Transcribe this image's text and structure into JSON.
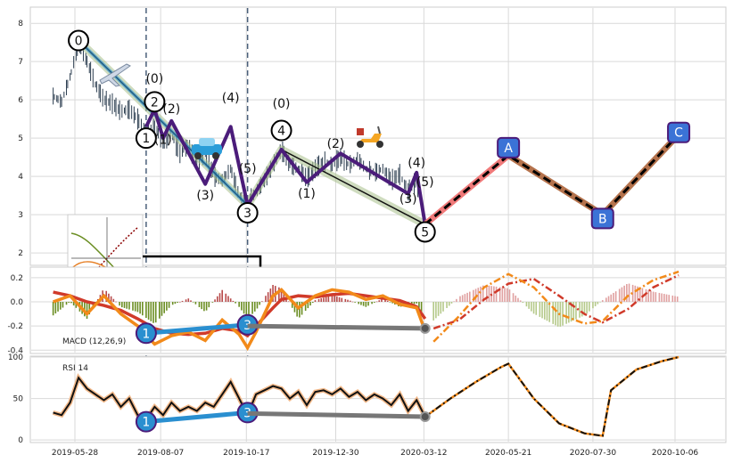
{
  "chart_data": [
    {
      "type": "line",
      "panel": "price",
      "ylim": [
        1.7,
        8.4
      ],
      "yticks": [
        "2",
        "3",
        "4",
        "5",
        "6",
        "7",
        "8"
      ],
      "xticks": [
        "2019-05-28",
        "2019-08-07",
        "2019-10-17",
        "2019-12-30",
        "2020-03-12",
        "2020-05-21",
        "2020-07-30",
        "2020-10-06"
      ],
      "grid": true,
      "price_series": [
        [
          "2019-05-10",
          6.1
        ],
        [
          "2019-05-17",
          5.95
        ],
        [
          "2019-05-24",
          6.6
        ],
        [
          "2019-05-31",
          7.5
        ],
        [
          "2019-06-07",
          7.0
        ],
        [
          "2019-06-14",
          6.4
        ],
        [
          "2019-06-21",
          6.0
        ],
        [
          "2019-06-28",
          5.9
        ],
        [
          "2019-07-05",
          5.7
        ],
        [
          "2019-07-12",
          5.75
        ],
        [
          "2019-07-19",
          5.5
        ],
        [
          "2019-07-26",
          5.1
        ],
        [
          "2019-08-02",
          5.3
        ],
        [
          "2019-08-09",
          4.9
        ],
        [
          "2019-08-16",
          5.1
        ],
        [
          "2019-08-23",
          4.6
        ],
        [
          "2019-08-30",
          4.8
        ],
        [
          "2019-09-06",
          4.3
        ],
        [
          "2019-09-13",
          4.6
        ],
        [
          "2019-09-20",
          4.0
        ],
        [
          "2019-09-27",
          3.9
        ],
        [
          "2019-10-04",
          4.2
        ],
        [
          "2019-10-11",
          3.5
        ],
        [
          "2019-10-18",
          3.3
        ],
        [
          "2019-10-25",
          3.6
        ],
        [
          "2019-11-01",
          3.9
        ],
        [
          "2019-11-08",
          4.3
        ],
        [
          "2019-11-15",
          4.7
        ],
        [
          "2019-11-22",
          4.3
        ],
        [
          "2019-11-29",
          4.2
        ],
        [
          "2019-12-06",
          3.95
        ],
        [
          "2019-12-13",
          4.2
        ],
        [
          "2019-12-20",
          4.4
        ],
        [
          "2019-12-27",
          4.3
        ],
        [
          "2020-01-03",
          4.5
        ],
        [
          "2020-01-10",
          4.3
        ],
        [
          "2020-01-17",
          4.45
        ],
        [
          "2020-01-24",
          4.2
        ],
        [
          "2020-01-31",
          4.1
        ],
        [
          "2020-02-07",
          4.2
        ],
        [
          "2020-02-14",
          3.9
        ],
        [
          "2020-02-21",
          4.05
        ],
        [
          "2020-02-28",
          3.6
        ],
        [
          "2020-03-06",
          3.9
        ],
        [
          "2020-03-13",
          2.75
        ]
      ],
      "trend_line": [
        [
          "2019-05-31",
          7.55
        ],
        [
          "2019-10-18",
          3.25
        ],
        [
          "2019-11-15",
          4.7
        ],
        [
          "2020-03-13",
          2.75
        ]
      ],
      "wave_path": [
        [
          "2019-07-26",
          5.3
        ],
        [
          "2019-08-02",
          5.75
        ],
        [
          "2019-08-09",
          5.0
        ],
        [
          "2019-08-16",
          5.45
        ],
        [
          "2019-09-13",
          3.8
        ],
        [
          "2019-10-04",
          5.3
        ],
        [
          "2019-10-18",
          3.25
        ],
        [
          "2019-11-15",
          4.7
        ],
        [
          "2019-12-06",
          3.85
        ],
        [
          "2020-01-03",
          4.6
        ],
        [
          "2020-02-28",
          3.55
        ],
        [
          "2020-03-06",
          4.1
        ],
        [
          "2020-03-13",
          2.75
        ]
      ],
      "projection": [
        [
          "2020-03-13",
          2.75
        ],
        [
          "2020-05-21",
          4.55
        ],
        [
          "2020-08-07",
          3.0
        ],
        [
          "2020-10-09",
          5.1
        ]
      ],
      "wave_labels": [
        {
          "text": "0",
          "x": "2019-05-31",
          "y": 7.55,
          "circled": true
        },
        {
          "text": "1",
          "x": "2019-07-26",
          "y": 5.0,
          "circled": true
        },
        {
          "text": "2",
          "x": "2019-08-02",
          "y": 5.95,
          "circled": true
        },
        {
          "text": "3",
          "x": "2019-10-18",
          "y": 3.05,
          "circled": true
        },
        {
          "text": "4",
          "x": "2019-11-15",
          "y": 5.2,
          "circled": true
        },
        {
          "text": "5",
          "x": "2020-03-13",
          "y": 2.55,
          "circled": true
        },
        {
          "text": "(0)",
          "x": "2019-08-02",
          "y": 6.45,
          "circled": false
        },
        {
          "text": "(1)",
          "x": "2019-08-09",
          "y": 4.85,
          "circled": false
        },
        {
          "text": "(2)",
          "x": "2019-08-16",
          "y": 5.65,
          "circled": false
        },
        {
          "text": "(3)",
          "x": "2019-09-13",
          "y": 3.4,
          "circled": false
        },
        {
          "text": "(4)",
          "x": "2019-10-04",
          "y": 5.95,
          "circled": false
        },
        {
          "text": "(5)",
          "x": "2019-10-18",
          "y": 4.1,
          "circled": false
        },
        {
          "text": "(0)",
          "x": "2019-11-15",
          "y": 5.8,
          "circled": false
        },
        {
          "text": "(1)",
          "x": "2019-12-06",
          "y": 3.45,
          "circled": false
        },
        {
          "text": "(2)",
          "x": "2019-12-30",
          "y": 4.75,
          "circled": false
        },
        {
          "text": "(3)",
          "x": "2020-02-28",
          "y": 3.3,
          "circled": false
        },
        {
          "text": "(4)",
          "x": "2020-03-06",
          "y": 4.25,
          "circled": false
        },
        {
          "text": "(5)",
          "x": "2020-03-13",
          "y": 3.75,
          "circled": false
        }
      ],
      "abc_labels": [
        {
          "text": "A",
          "x": "2020-05-21",
          "y": 4.75
        },
        {
          "text": "B",
          "x": "2020-08-07",
          "y": 2.9
        },
        {
          "text": "C",
          "x": "2020-10-09",
          "y": 5.15
        }
      ],
      "vlines": [
        "2019-07-26",
        "2019-10-18"
      ],
      "icons": [
        "airplane-icon",
        "car-icon",
        "scooter-icon"
      ]
    },
    {
      "type": "bar",
      "panel": "macd",
      "label": "MACD (12,26,9)",
      "ylim": [
        -0.42,
        0.28
      ],
      "yticks": [
        "0.2",
        "0.0",
        "-0.2",
        "-0.4"
      ],
      "macd_line": [
        [
          "2019-05-10",
          0.0
        ],
        [
          "2019-05-24",
          0.05
        ],
        [
          "2019-06-07",
          -0.1
        ],
        [
          "2019-06-21",
          0.05
        ],
        [
          "2019-07-05",
          -0.1
        ],
        [
          "2019-07-19",
          -0.2
        ],
        [
          "2019-08-02",
          -0.35
        ],
        [
          "2019-08-16",
          -0.28
        ],
        [
          "2019-08-30",
          -0.25
        ],
        [
          "2019-09-13",
          -0.32
        ],
        [
          "2019-09-27",
          -0.15
        ],
        [
          "2019-10-11",
          -0.27
        ],
        [
          "2019-10-18",
          -0.38
        ],
        [
          "2019-10-25",
          -0.25
        ],
        [
          "2019-11-08",
          0.05
        ],
        [
          "2019-11-15",
          0.1
        ],
        [
          "2019-11-29",
          -0.05
        ],
        [
          "2019-12-13",
          0.05
        ],
        [
          "2019-12-27",
          0.1
        ],
        [
          "2020-01-10",
          0.08
        ],
        [
          "2020-01-24",
          0.02
        ],
        [
          "2020-02-07",
          0.05
        ],
        [
          "2020-02-21",
          -0.02
        ],
        [
          "2020-03-06",
          -0.05
        ],
        [
          "2020-03-13",
          -0.24
        ]
      ],
      "signal_line": [
        [
          "2019-05-10",
          0.08
        ],
        [
          "2019-05-24",
          0.05
        ],
        [
          "2019-06-07",
          0.0
        ],
        [
          "2019-06-21",
          -0.03
        ],
        [
          "2019-07-05",
          -0.07
        ],
        [
          "2019-07-19",
          -0.14
        ],
        [
          "2019-08-02",
          -0.22
        ],
        [
          "2019-08-16",
          -0.26
        ],
        [
          "2019-08-30",
          -0.27
        ],
        [
          "2019-09-13",
          -0.26
        ],
        [
          "2019-09-27",
          -0.22
        ],
        [
          "2019-10-11",
          -0.24
        ],
        [
          "2019-10-18",
          -0.28
        ],
        [
          "2019-10-25",
          -0.2
        ],
        [
          "2019-11-08",
          -0.05
        ],
        [
          "2019-11-15",
          0.02
        ],
        [
          "2019-11-29",
          0.05
        ],
        [
          "2019-12-13",
          0.04
        ],
        [
          "2019-12-27",
          0.06
        ],
        [
          "2020-01-10",
          0.07
        ],
        [
          "2020-01-24",
          0.05
        ],
        [
          "2020-02-07",
          0.03
        ],
        [
          "2020-02-21",
          0.01
        ],
        [
          "2020-03-06",
          -0.04
        ],
        [
          "2020-03-13",
          -0.14
        ]
      ],
      "proj_macd": [
        [
          "2020-03-20",
          -0.33
        ],
        [
          "2020-04-10",
          -0.12
        ],
        [
          "2020-05-01",
          0.12
        ],
        [
          "2020-05-21",
          0.23
        ],
        [
          "2020-06-11",
          0.12
        ],
        [
          "2020-07-02",
          -0.1
        ],
        [
          "2020-07-23",
          -0.18
        ],
        [
          "2020-08-07",
          -0.16
        ],
        [
          "2020-08-28",
          0.05
        ],
        [
          "2020-09-18",
          0.18
        ],
        [
          "2020-10-09",
          0.25
        ]
      ],
      "proj_signal": [
        [
          "2020-03-20",
          -0.22
        ],
        [
          "2020-04-10",
          -0.15
        ],
        [
          "2020-05-01",
          0.02
        ],
        [
          "2020-05-21",
          0.15
        ],
        [
          "2020-06-11",
          0.19
        ],
        [
          "2020-07-02",
          0.05
        ],
        [
          "2020-07-23",
          -0.1
        ],
        [
          "2020-08-07",
          -0.17
        ],
        [
          "2020-08-28",
          -0.06
        ],
        [
          "2020-09-18",
          0.12
        ],
        [
          "2020-10-09",
          0.22
        ]
      ],
      "marker_lines": [
        {
          "from": [
            "2019-07-26",
            -0.26
          ],
          "to": [
            "2019-10-18",
            -0.19
          ],
          "color": "#2a8fd0",
          "labels": [
            "1",
            "3"
          ]
        },
        {
          "from": [
            "2019-10-18",
            -0.2
          ],
          "to": [
            "2020-03-13",
            -0.22
          ],
          "color": "#777777",
          "labels": []
        }
      ]
    },
    {
      "type": "line",
      "panel": "rsi",
      "label": "RSI 14",
      "ylim": [
        -2,
        100
      ],
      "yticks": [
        "100",
        "50",
        "0"
      ],
      "rsi_line": [
        [
          "2019-05-10",
          33
        ],
        [
          "2019-05-17",
          30
        ],
        [
          "2019-05-24",
          45
        ],
        [
          "2019-05-31",
          75
        ],
        [
          "2019-06-07",
          62
        ],
        [
          "2019-06-14",
          55
        ],
        [
          "2019-06-21",
          48
        ],
        [
          "2019-06-28",
          55
        ],
        [
          "2019-07-05",
          40
        ],
        [
          "2019-07-12",
          50
        ],
        [
          "2019-07-19",
          30
        ],
        [
          "2019-07-26",
          25
        ],
        [
          "2019-08-02",
          40
        ],
        [
          "2019-08-09",
          30
        ],
        [
          "2019-08-16",
          45
        ],
        [
          "2019-08-23",
          35
        ],
        [
          "2019-08-30",
          40
        ],
        [
          "2019-09-06",
          35
        ],
        [
          "2019-09-13",
          45
        ],
        [
          "2019-09-20",
          40
        ],
        [
          "2019-09-27",
          55
        ],
        [
          "2019-10-04",
          70
        ],
        [
          "2019-10-11",
          50
        ],
        [
          "2019-10-18",
          30
        ],
        [
          "2019-10-25",
          55
        ],
        [
          "2019-11-01",
          60
        ],
        [
          "2019-11-08",
          65
        ],
        [
          "2019-11-15",
          62
        ],
        [
          "2019-11-22",
          50
        ],
        [
          "2019-11-29",
          58
        ],
        [
          "2019-12-06",
          42
        ],
        [
          "2019-12-13",
          58
        ],
        [
          "2019-12-20",
          60
        ],
        [
          "2019-12-27",
          55
        ],
        [
          "2020-01-03",
          62
        ],
        [
          "2020-01-10",
          52
        ],
        [
          "2020-01-17",
          58
        ],
        [
          "2020-01-24",
          48
        ],
        [
          "2020-01-31",
          55
        ],
        [
          "2020-02-07",
          50
        ],
        [
          "2020-02-14",
          42
        ],
        [
          "2020-02-21",
          55
        ],
        [
          "2020-02-28",
          35
        ],
        [
          "2020-03-06",
          48
        ],
        [
          "2020-03-13",
          28
        ]
      ],
      "rsi_proj": [
        [
          "2020-03-13",
          28
        ],
        [
          "2020-04-03",
          50
        ],
        [
          "2020-04-24",
          70
        ],
        [
          "2020-05-15",
          88
        ],
        [
          "2020-05-21",
          92
        ],
        [
          "2020-06-11",
          50
        ],
        [
          "2020-07-02",
          20
        ],
        [
          "2020-07-23",
          8
        ],
        [
          "2020-08-07",
          5
        ],
        [
          "2020-08-14",
          60
        ],
        [
          "2020-09-04",
          85
        ],
        [
          "2020-09-25",
          95
        ],
        [
          "2020-10-09",
          100
        ]
      ],
      "marker_lines": [
        {
          "from": [
            "2019-07-26",
            22
          ],
          "to": [
            "2019-10-18",
            33
          ],
          "color": "#2a8fd0",
          "labels": [
            "1",
            "3"
          ]
        },
        {
          "from": [
            "2019-10-18",
            32
          ],
          "to": [
            "2020-03-13",
            28
          ],
          "color": "#777777",
          "labels": []
        }
      ]
    }
  ]
}
